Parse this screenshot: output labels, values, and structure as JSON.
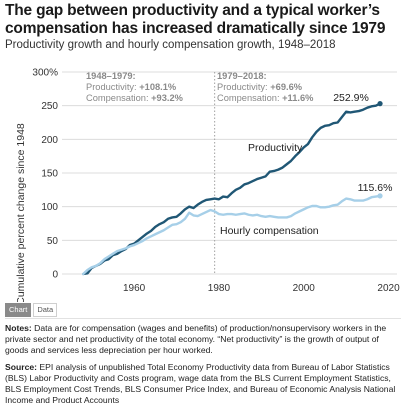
{
  "header": {
    "title": "The gap between productivity and a typical worker’s compensation has increased dramatically since 1979",
    "subtitle": "Productivity growth and hourly compensation growth, 1948–2018"
  },
  "tabs": [
    {
      "label": "Chart",
      "active": true
    },
    {
      "label": "Data",
      "active": false
    }
  ],
  "notes": {
    "label": "Notes:",
    "text": " Data are for compensation (wages and benefits) of production/nonsupervisory workers in the private sector and net productivity of the total economy. “Net productivity” is the growth of output of goods and services less depreciation per hour worked."
  },
  "source": {
    "label": "Source:",
    "text": " EPI analysis of unpublished Total Economy Productivity data from Bureau of Labor Statistics (BLS) Labor Productivity and Costs program, wage data from the BLS Current Employment Statistics, BLS Employment Cost Trends, BLS Consumer Price Index, and Bureau of Economic Analysis National Income and Product Accounts"
  },
  "colors": {
    "productivity": "#205775",
    "compensation": "#a6cfe8",
    "grid": "#dcdcdc",
    "period_text": "#8a8a8a",
    "divider": "#a0a0a0"
  },
  "chart_data": {
    "type": "line",
    "ylabel": "Cumulative percent change since 1948",
    "xlim": [
      1943,
      2022
    ],
    "ylim": [
      0,
      300
    ],
    "x_ticks": [
      1960,
      1980,
      2000,
      2020
    ],
    "x_tick_labels": [
      "1960",
      "1980",
      "2000",
      "2020"
    ],
    "y_ticks": [
      0,
      50,
      100,
      150,
      200,
      250,
      300
    ],
    "y_tick_labels": [
      "0",
      "50",
      "100",
      "150",
      "200",
      "250",
      "300%"
    ],
    "grid": "horizontal",
    "divider_year": 1979,
    "periods": [
      {
        "label": "1948–1979:",
        "productivity": "Productivity: ",
        "productivity_value": "+108.1%",
        "compensation": "Compensation: ",
        "compensation_value": "+93.2%"
      },
      {
        "label": "1979–2018:",
        "productivity": "Productivity: ",
        "productivity_value": "+69.6%",
        "compensation": "Compensation: ",
        "compensation_value": "+11.6%"
      }
    ],
    "series": [
      {
        "name": "Productivity",
        "end_label": "252.9%",
        "x": [
          1948,
          1949,
          1950,
          1951,
          1952,
          1953,
          1954,
          1955,
          1956,
          1957,
          1958,
          1959,
          1960,
          1961,
          1962,
          1963,
          1964,
          1965,
          1966,
          1967,
          1968,
          1969,
          1970,
          1971,
          1972,
          1973,
          1974,
          1975,
          1976,
          1977,
          1978,
          1979,
          1980,
          1981,
          1982,
          1983,
          1984,
          1985,
          1986,
          1987,
          1988,
          1989,
          1990,
          1991,
          1992,
          1993,
          1994,
          1995,
          1996,
          1997,
          1998,
          1999,
          2000,
          2001,
          2002,
          2003,
          2004,
          2005,
          2006,
          2007,
          2008,
          2009,
          2010,
          2011,
          2012,
          2013,
          2014,
          2015,
          2016,
          2017,
          2018
        ],
        "values": [
          0,
          1,
          9,
          12,
          15,
          20,
          22,
          28,
          30,
          34,
          37,
          43,
          45,
          50,
          55,
          60,
          64,
          70,
          74,
          77,
          82,
          84,
          85,
          90,
          96,
          100,
          98,
          103,
          107,
          110,
          111,
          112,
          111,
          115,
          114,
          120,
          125,
          128,
          133,
          135,
          138,
          141,
          143,
          145,
          152,
          153,
          155,
          158,
          163,
          168,
          175,
          181,
          188,
          193,
          203,
          211,
          217,
          220,
          221,
          224,
          225,
          233,
          241,
          240,
          241,
          242,
          244,
          247,
          249,
          250,
          253
        ]
      },
      {
        "name": "Hourly compensation",
        "end_label": "115.6%",
        "x": [
          1948,
          1949,
          1950,
          1951,
          1952,
          1953,
          1954,
          1955,
          1956,
          1957,
          1958,
          1959,
          1960,
          1961,
          1962,
          1963,
          1964,
          1965,
          1966,
          1967,
          1968,
          1969,
          1970,
          1971,
          1972,
          1973,
          1974,
          1975,
          1976,
          1977,
          1978,
          1979,
          1980,
          1981,
          1982,
          1983,
          1984,
          1985,
          1986,
          1987,
          1988,
          1989,
          1990,
          1991,
          1992,
          1993,
          1994,
          1995,
          1996,
          1997,
          1998,
          1999,
          2000,
          2001,
          2002,
          2003,
          2004,
          2005,
          2006,
          2007,
          2008,
          2009,
          2010,
          2011,
          2012,
          2013,
          2014,
          2015,
          2016,
          2017,
          2018
        ],
        "values": [
          0,
          6,
          10,
          12,
          16,
          22,
          26,
          30,
          34,
          36,
          38,
          41,
          43,
          46,
          49,
          53,
          56,
          59,
          62,
          65,
          69,
          73,
          74,
          77,
          82,
          91,
          87,
          86,
          89,
          92,
          95,
          93,
          89,
          88,
          89,
          89,
          88,
          89,
          90,
          88,
          87,
          88,
          86,
          85,
          86,
          85,
          84,
          84,
          84,
          86,
          90,
          93,
          96,
          99,
          101,
          101,
          99,
          99,
          100,
          102,
          103,
          108,
          112,
          111,
          109,
          109,
          109,
          111,
          114,
          115,
          116
        ]
      }
    ]
  }
}
